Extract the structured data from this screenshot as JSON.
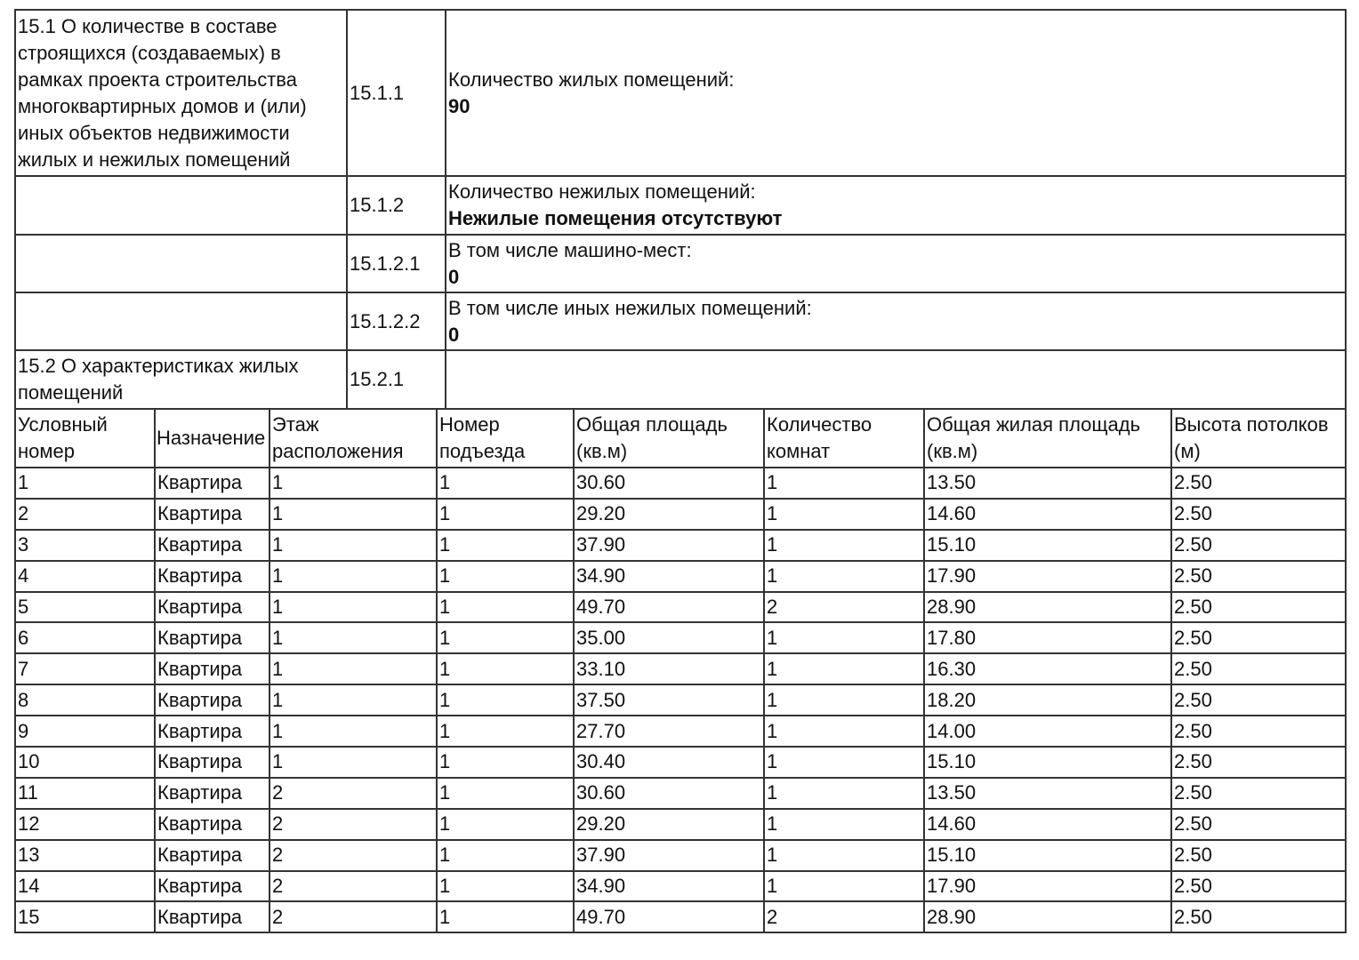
{
  "sections": [
    {
      "label": "15.1 О количестве в составе строящихся (создаваемых) в рамках проекта строительства многоквартирных домов и (или) иных объектов недвижимости жилых и нежилых помещений",
      "code": "15.1.1",
      "title": "Количество жилых помещений:",
      "value": "90"
    },
    {
      "label": "",
      "code": "15.1.2",
      "title": "Количество нежилых помещений:",
      "value": "Нежилые помещения отсутствуют"
    },
    {
      "label": "",
      "code": "15.1.2.1",
      "title": "В том числе машино-мест:",
      "value": "0"
    },
    {
      "label": "",
      "code": "15.1.2.2",
      "title": "В том числе иных нежилых помещений:",
      "value": "0"
    },
    {
      "label": "15.2 О характеристиках жилых помещений",
      "code": "15.2.1",
      "title": "",
      "value": ""
    }
  ],
  "table": {
    "headers": [
      "Условный номер",
      "Назначение",
      "Этаж расположения",
      "Номер подъезда",
      "Общая площадь (кв.м)",
      "Количество комнат",
      "Общая жилая площадь (кв.м)",
      "Высота потолков (м)"
    ],
    "rows": [
      [
        "1",
        "Квартира",
        "1",
        "1",
        "30.60",
        "1",
        "13.50",
        "2.50"
      ],
      [
        "2",
        "Квартира",
        "1",
        "1",
        "29.20",
        "1",
        "14.60",
        "2.50"
      ],
      [
        "3",
        "Квартира",
        "1",
        "1",
        "37.90",
        "1",
        "15.10",
        "2.50"
      ],
      [
        "4",
        "Квартира",
        "1",
        "1",
        "34.90",
        "1",
        "17.90",
        "2.50"
      ],
      [
        "5",
        "Квартира",
        "1",
        "1",
        "49.70",
        "2",
        "28.90",
        "2.50"
      ],
      [
        "6",
        "Квартира",
        "1",
        "1",
        "35.00",
        "1",
        "17.80",
        "2.50"
      ],
      [
        "7",
        "Квартира",
        "1",
        "1",
        "33.10",
        "1",
        "16.30",
        "2.50"
      ],
      [
        "8",
        "Квартира",
        "1",
        "1",
        "37.50",
        "1",
        "18.20",
        "2.50"
      ],
      [
        "9",
        "Квартира",
        "1",
        "1",
        "27.70",
        "1",
        "14.00",
        "2.50"
      ],
      [
        "10",
        "Квартира",
        "1",
        "1",
        "30.40",
        "1",
        "15.10",
        "2.50"
      ],
      [
        "11",
        "Квартира",
        "2",
        "1",
        "30.60",
        "1",
        "13.50",
        "2.50"
      ],
      [
        "12",
        "Квартира",
        "2",
        "1",
        "29.20",
        "1",
        "14.60",
        "2.50"
      ],
      [
        "13",
        "Квартира",
        "2",
        "1",
        "37.90",
        "1",
        "15.10",
        "2.50"
      ],
      [
        "14",
        "Квартира",
        "2",
        "1",
        "34.90",
        "1",
        "17.90",
        "2.50"
      ],
      [
        "15",
        "Квартира",
        "2",
        "1",
        "49.70",
        "2",
        "28.90",
        "2.50"
      ]
    ]
  }
}
